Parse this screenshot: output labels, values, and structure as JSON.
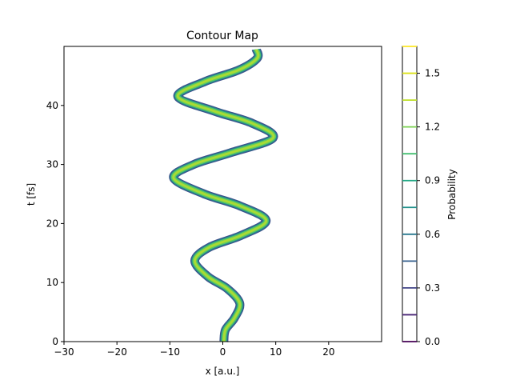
{
  "chart_data": {
    "type": "contour",
    "title": "Contour Map",
    "xlabel": "x [a.u.]",
    "ylabel": "t [fs]",
    "xlim": [
      -30,
      30
    ],
    "ylim": [
      0,
      50
    ],
    "xticks": [
      -30,
      -20,
      -10,
      0,
      10,
      20
    ],
    "yticks": [
      0,
      10,
      20,
      30,
      40
    ],
    "colorbar": {
      "label": "Probability",
      "range": [
        0.0,
        1.65
      ],
      "tick_values": [
        0.0,
        0.3,
        0.6,
        0.9,
        1.2,
        1.5
      ],
      "tick_labels": [
        "0.0",
        "0.3",
        "0.6",
        "0.9",
        "1.2",
        "1.5"
      ],
      "level_values": [
        0.0,
        0.15,
        0.3,
        0.45,
        0.6,
        0.75,
        0.9,
        1.05,
        1.2,
        1.35,
        1.5,
        1.65
      ],
      "level_colors": [
        "#440154",
        "#482475",
        "#414487",
        "#355f8d",
        "#2a788e",
        "#21918c",
        "#22a884",
        "#44bf70",
        "#7ad151",
        "#bddf26",
        "#dbe217",
        "#fde725"
      ]
    },
    "ridge": {
      "t": [
        0,
        2,
        4,
        6.5,
        9,
        11,
        13.7,
        16,
        18,
        20.5,
        23,
        25,
        27.7,
        30,
        32,
        34.5,
        37,
        39,
        41.5,
        44,
        46,
        48,
        49.5
      ],
      "x": [
        0.2,
        0.5,
        2.2,
        3.2,
        0.8,
        -2.8,
        -5.3,
        -2.5,
        3.5,
        8.2,
        3.2,
        -3.5,
        -9.3,
        -5.5,
        1.5,
        9.5,
        5.5,
        -1.5,
        -8.5,
        -3.5,
        3.0,
        6.5,
        6.3
      ]
    }
  }
}
